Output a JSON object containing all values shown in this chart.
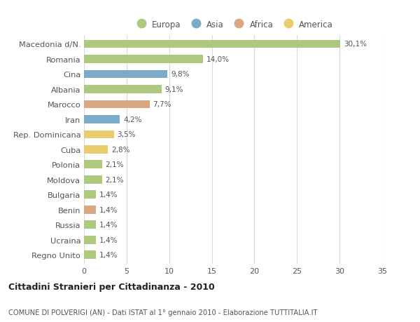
{
  "categories": [
    "Macedonia d/N.",
    "Romania",
    "Cina",
    "Albania",
    "Marocco",
    "Iran",
    "Rep. Dominicana",
    "Cuba",
    "Polonia",
    "Moldova",
    "Bulgaria",
    "Benin",
    "Russia",
    "Ucraina",
    "Regno Unito"
  ],
  "values": [
    30.1,
    14.0,
    9.8,
    9.1,
    7.7,
    4.2,
    3.5,
    2.8,
    2.1,
    2.1,
    1.4,
    1.4,
    1.4,
    1.4,
    1.4
  ],
  "labels": [
    "30,1%",
    "14,0%",
    "9,8%",
    "9,1%",
    "7,7%",
    "4,2%",
    "3,5%",
    "2,8%",
    "2,1%",
    "2,1%",
    "1,4%",
    "1,4%",
    "1,4%",
    "1,4%",
    "1,4%"
  ],
  "colors": [
    "#adc97e",
    "#adc97e",
    "#7aacc9",
    "#adc97e",
    "#d9a882",
    "#7aacc9",
    "#e8cc6d",
    "#e8cc6d",
    "#adc97e",
    "#adc97e",
    "#adc97e",
    "#d9a882",
    "#adc97e",
    "#adc97e",
    "#adc97e"
  ],
  "legend_labels": [
    "Europa",
    "Asia",
    "Africa",
    "America"
  ],
  "legend_colors": [
    "#adc97e",
    "#7aacc9",
    "#d9a882",
    "#e8cc6d"
  ],
  "title": "Cittadini Stranieri per Cittadinanza - 2010",
  "subtitle": "COMUNE DI POLVERIGI (AN) - Dati ISTAT al 1° gennaio 2010 - Elaborazione TUTTITALIA.IT",
  "xlim": [
    0,
    35
  ],
  "xticks": [
    0,
    5,
    10,
    15,
    20,
    25,
    30,
    35
  ],
  "bg_color": "#ffffff",
  "grid_color": "#d8d8d8",
  "bar_height": 0.55
}
